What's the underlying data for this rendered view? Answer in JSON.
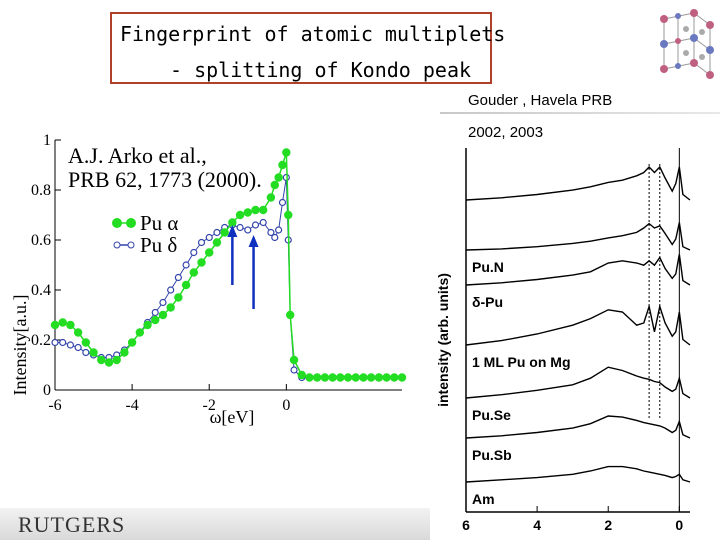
{
  "slide": {
    "title_line1": "Fingerprint of atomic multiplets",
    "title_line2": "- splitting of Kondo peak",
    "citation_line1": "Gouder , Havela PRB",
    "citation_line2": "2002, 2003",
    "footer_brand": "RUTGERS",
    "crystal_icon": "crystal-lattice-icon"
  },
  "chart_data": [
    {
      "type": "scatter",
      "title": "",
      "annotation_line1": "A.J. Arko et al.,",
      "annotation_line2": "PRB 62, 1773 (2000).",
      "xlabel": "ω[eV]",
      "ylabel": "Intensity[a.u.]",
      "xlim": [
        -6,
        3
      ],
      "ylim": [
        0,
        1
      ],
      "x_ticks": [
        -6,
        -4,
        -2,
        0
      ],
      "y_ticks": [
        0,
        0.2,
        0.4,
        0.6,
        0.8,
        1
      ],
      "y_tick_labels": [
        "0",
        "0.2",
        "0.4",
        "0.6",
        "0.8",
        "1"
      ],
      "legend_position": "center",
      "arrows_at_ev": [
        -1.4,
        -0.85
      ],
      "series": [
        {
          "name": "Pu α",
          "color": "#22dd22",
          "marker": "filled-circle",
          "x": [
            -6.0,
            -5.8,
            -5.6,
            -5.4,
            -5.2,
            -5.0,
            -4.8,
            -4.6,
            -4.4,
            -4.2,
            -4.0,
            -3.8,
            -3.6,
            -3.4,
            -3.2,
            -3.0,
            -2.8,
            -2.6,
            -2.4,
            -2.2,
            -2.0,
            -1.8,
            -1.6,
            -1.4,
            -1.2,
            -1.0,
            -0.8,
            -0.6,
            -0.4,
            -0.3,
            -0.2,
            -0.1,
            0.0,
            0.05,
            0.1,
            0.2,
            0.4,
            0.6,
            0.8,
            1.0,
            1.2,
            1.4,
            1.6,
            1.8,
            2.0,
            2.2,
            2.4,
            2.6,
            2.8,
            3.0
          ],
          "y": [
            0.26,
            0.27,
            0.26,
            0.23,
            0.19,
            0.15,
            0.12,
            0.11,
            0.12,
            0.15,
            0.19,
            0.23,
            0.26,
            0.28,
            0.3,
            0.33,
            0.37,
            0.42,
            0.47,
            0.51,
            0.55,
            0.59,
            0.63,
            0.67,
            0.7,
            0.71,
            0.72,
            0.72,
            0.77,
            0.82,
            0.85,
            0.9,
            0.95,
            0.7,
            0.3,
            0.12,
            0.06,
            0.05,
            0.05,
            0.05,
            0.05,
            0.05,
            0.05,
            0.05,
            0.05,
            0.05,
            0.05,
            0.05,
            0.05,
            0.05
          ]
        },
        {
          "name": "Pu δ",
          "color": "#3344aa",
          "marker": "open-circle",
          "x": [
            -6.0,
            -5.8,
            -5.6,
            -5.4,
            -5.2,
            -5.0,
            -4.8,
            -4.6,
            -4.4,
            -4.2,
            -4.0,
            -3.8,
            -3.6,
            -3.4,
            -3.2,
            -3.0,
            -2.8,
            -2.6,
            -2.4,
            -2.2,
            -2.0,
            -1.8,
            -1.6,
            -1.4,
            -1.2,
            -1.0,
            -0.8,
            -0.6,
            -0.4,
            -0.3,
            -0.2,
            -0.1,
            0.0,
            0.05,
            0.1,
            0.2,
            0.4,
            0.6,
            0.8,
            1.0,
            1.2,
            1.4,
            1.6,
            1.8,
            2.0,
            2.2,
            2.4,
            2.6,
            2.8,
            3.0
          ],
          "y": [
            0.19,
            0.19,
            0.18,
            0.17,
            0.15,
            0.14,
            0.13,
            0.13,
            0.14,
            0.16,
            0.19,
            0.23,
            0.27,
            0.31,
            0.35,
            0.4,
            0.45,
            0.5,
            0.55,
            0.59,
            0.61,
            0.63,
            0.65,
            0.66,
            0.65,
            0.64,
            0.66,
            0.67,
            0.63,
            0.61,
            0.64,
            0.75,
            0.85,
            0.6,
            0.3,
            0.08,
            0.05,
            0.05,
            0.05,
            0.05,
            0.05,
            0.05,
            0.05,
            0.05,
            0.05,
            0.05,
            0.05,
            0.05,
            0.05,
            0.05
          ]
        }
      ]
    },
    {
      "type": "line",
      "title": "",
      "xlabel": "",
      "ylabel": "intensity (arb. units)",
      "xlim": [
        6,
        -0.3
      ],
      "x_ticks": [
        6,
        4,
        2,
        0
      ],
      "dotted_lines_at": [
        0.85,
        0.55
      ],
      "solid_line_at": 0,
      "legend_position": "in-plot labels",
      "series": [
        {
          "name": "",
          "y_offset": 0,
          "x": [
            6,
            5,
            4,
            3,
            2.5,
            2,
            1.6,
            1.2,
            1.0,
            0.85,
            0.7,
            0.55,
            0.4,
            0.2,
            0.1,
            0.0,
            -0.1,
            -0.3
          ],
          "y": [
            0,
            0.02,
            0.05,
            0.09,
            0.12,
            0.16,
            0.18,
            0.22,
            0.25,
            0.3,
            0.25,
            0.3,
            0.2,
            0.08,
            0.15,
            0.3,
            0.05,
            0.0
          ]
        },
        {
          "name": "Pu.N",
          "y_offset": 1,
          "x": [
            6,
            5,
            4,
            3,
            2.5,
            2,
            1.6,
            1.2,
            1.0,
            0.85,
            0.7,
            0.55,
            0.4,
            0.2,
            0.1,
            0.0,
            -0.1,
            -0.3
          ],
          "y": [
            0,
            0.01,
            0.03,
            0.06,
            0.08,
            0.11,
            0.13,
            0.16,
            0.2,
            0.24,
            0.2,
            0.22,
            0.15,
            0.05,
            0.1,
            0.25,
            0.03,
            0.0
          ]
        },
        {
          "name": "δ-Pu",
          "y_offset": 2,
          "x": [
            6,
            5,
            4,
            3,
            2.5,
            2,
            1.6,
            1.2,
            1.0,
            0.85,
            0.7,
            0.55,
            0.4,
            0.2,
            0.1,
            0.0,
            -0.1,
            -0.3
          ],
          "y": [
            0,
            0.02,
            0.05,
            0.09,
            0.12,
            0.2,
            0.22,
            0.2,
            0.18,
            0.22,
            0.18,
            0.25,
            0.15,
            0.06,
            0.1,
            0.28,
            0.04,
            0.0
          ]
        },
        {
          "name": "1 ML Pu on Mg",
          "y_offset": 3,
          "x": [
            6,
            5,
            4,
            3,
            2.5,
            2,
            1.6,
            1.2,
            1.0,
            0.85,
            0.7,
            0.55,
            0.4,
            0.2,
            0.1,
            0.0,
            -0.1,
            -0.3
          ],
          "y": [
            0,
            0.04,
            0.1,
            0.18,
            0.24,
            0.32,
            0.3,
            0.18,
            0.2,
            0.35,
            0.12,
            0.35,
            0.2,
            0.08,
            0.12,
            0.3,
            0.05,
            0.0
          ]
        },
        {
          "name": "Pu.Se",
          "y_offset": 4,
          "x": [
            6,
            5,
            4,
            3,
            2.5,
            2,
            1.6,
            1.2,
            1.0,
            0.85,
            0.7,
            0.55,
            0.4,
            0.2,
            0.1,
            0.0,
            -0.1,
            -0.3
          ],
          "y": [
            0,
            0.03,
            0.07,
            0.12,
            0.18,
            0.28,
            0.25,
            0.2,
            0.18,
            0.17,
            0.15,
            0.14,
            0.1,
            0.06,
            0.08,
            0.18,
            0.04,
            0.0
          ]
        },
        {
          "name": "Pu.Sb",
          "y_offset": 5,
          "x": [
            6,
            5,
            4,
            3,
            2.5,
            2,
            1.6,
            1.2,
            1.0,
            0.85,
            0.7,
            0.55,
            0.4,
            0.2,
            0.1,
            0.0,
            -0.1,
            -0.3
          ],
          "y": [
            0,
            0.02,
            0.05,
            0.09,
            0.13,
            0.2,
            0.19,
            0.16,
            0.14,
            0.13,
            0.12,
            0.11,
            0.09,
            0.05,
            0.07,
            0.15,
            0.03,
            0.0
          ]
        },
        {
          "name": "Am",
          "y_offset": 6,
          "x": [
            6,
            5,
            4,
            3,
            2.5,
            2,
            1.6,
            1.2,
            1.0,
            0.85,
            0.7,
            0.55,
            0.4,
            0.2,
            0.1,
            0.0,
            -0.1,
            -0.3
          ],
          "y": [
            0,
            0.02,
            0.04,
            0.07,
            0.1,
            0.14,
            0.14,
            0.12,
            0.1,
            0.09,
            0.08,
            0.07,
            0.06,
            0.04,
            0.05,
            0.07,
            0.02,
            0.0
          ]
        }
      ]
    }
  ]
}
